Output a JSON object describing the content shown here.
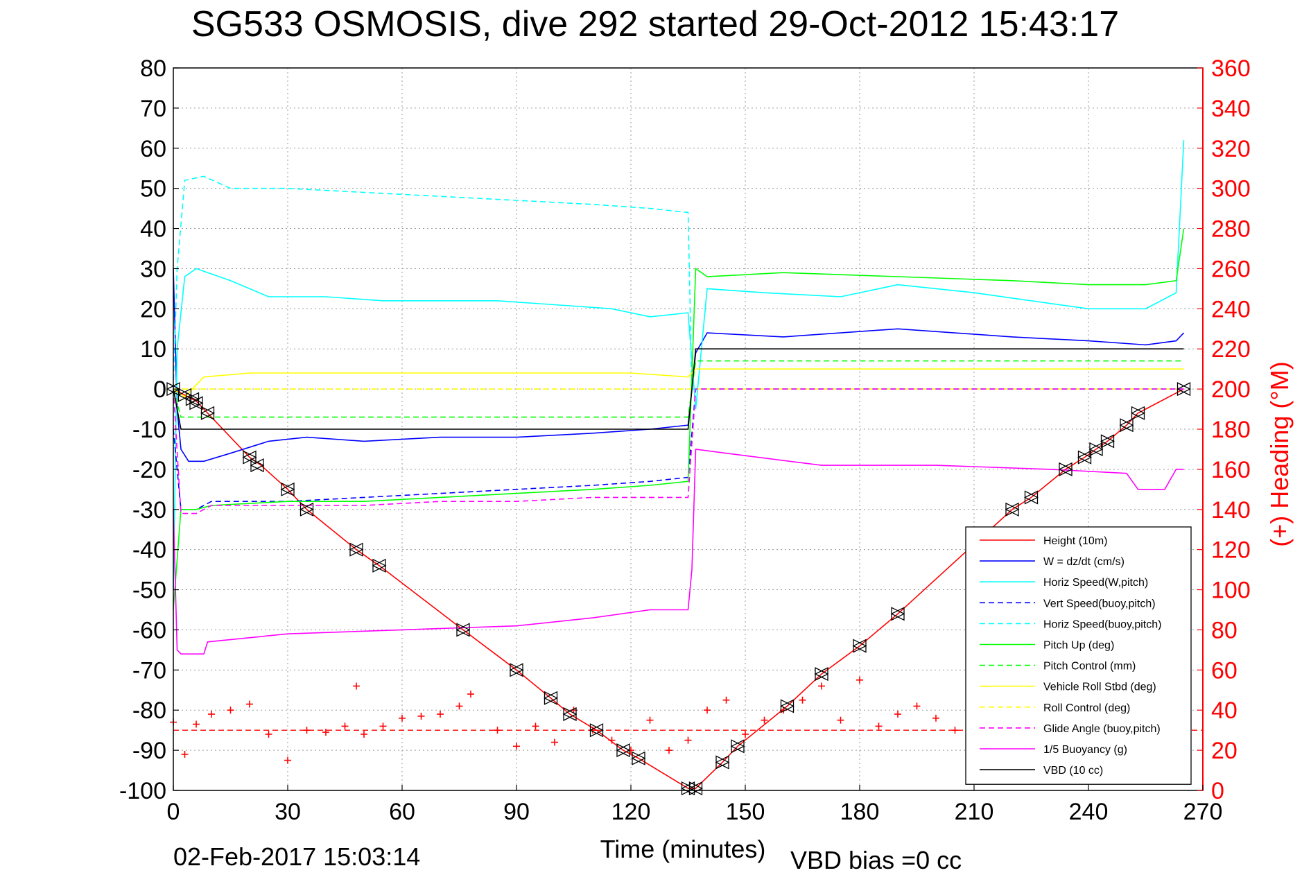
{
  "chart_data": {
    "type": "line",
    "title": "SG533 OSMOSIS, dive 292 started 29-Oct-2012 15:43:17",
    "xlabel": "Time (minutes)",
    "ylabel": "",
    "y2label": "(+) Heading (°M)",
    "xlim": [
      0,
      270
    ],
    "ylim": [
      -100,
      80
    ],
    "y2lim": [
      0,
      360
    ],
    "xticks": [
      "0",
      "30",
      "60",
      "90",
      "120",
      "150",
      "180",
      "210",
      "240",
      "270"
    ],
    "yticks": [
      "80",
      "70",
      "60",
      "50",
      "40",
      "30",
      "20",
      "10",
      "0",
      "-10",
      "-20",
      "-30",
      "-40",
      "-50",
      "-60",
      "-70",
      "-80",
      "-90",
      "-100"
    ],
    "y2ticks": [
      "360",
      "340",
      "320",
      "300",
      "280",
      "260",
      "240",
      "220",
      "200",
      "180",
      "160",
      "140",
      "120",
      "100",
      "80",
      "60",
      "40",
      "20",
      "0"
    ],
    "grid": true,
    "legend_position": "bottom-right",
    "footer_left": "02-Feb-2017 15:03:14",
    "footer_right": "VBD bias =0 cc",
    "colors": {
      "red": "#ff0000",
      "blue": "#0000ff",
      "cyan": "#00ffff",
      "green": "#00ff00",
      "yellow": "#ffff00",
      "magenta": "#ff00ff",
      "black": "#000000"
    },
    "series": [
      {
        "name": "Height (10m)",
        "color": "#ff0000",
        "dash": false,
        "x": [
          0,
          3,
          6,
          9,
          20,
          23,
          30,
          35,
          48,
          54,
          76,
          90,
          99,
          104,
          111,
          118,
          122,
          135,
          137,
          144,
          148,
          161,
          170,
          180,
          190,
          220,
          225,
          234,
          239,
          242,
          245,
          250,
          253,
          265
        ],
        "y": [
          0,
          -1.5,
          -3,
          -6,
          -17,
          -19,
          -25,
          -30,
          -40,
          -44,
          -60,
          -70,
          -77,
          -81,
          -85,
          -90,
          -92,
          -99.5,
          -99.5,
          -93,
          -89,
          -79,
          -71,
          -64,
          -56,
          -30,
          -27,
          -20,
          -17,
          -15,
          -13,
          -9,
          -6,
          0
        ]
      },
      {
        "name": "W = dz/dt (cm/s)",
        "color": "#0000ff",
        "dash": false,
        "x": [
          0,
          1,
          2,
          4,
          8,
          15,
          25,
          35,
          50,
          70,
          90,
          110,
          125,
          135,
          137,
          140,
          160,
          190,
          220,
          240,
          255,
          263,
          265
        ],
        "y": [
          30,
          -5,
          -15,
          -18,
          -18,
          -16,
          -13,
          -12,
          -13,
          -12,
          -12,
          -11,
          -10,
          -9,
          9,
          14,
          13,
          15,
          13,
          12,
          11,
          12,
          14
        ]
      },
      {
        "name": "Horiz Speed(W,pitch)",
        "color": "#00ffff",
        "dash": false,
        "x": [
          0,
          1,
          3,
          6,
          15,
          25,
          40,
          55,
          70,
          85,
          100,
          115,
          125,
          135,
          137,
          140,
          155,
          175,
          190,
          210,
          225,
          240,
          255,
          263,
          265
        ],
        "y": [
          -50,
          10,
          28,
          30,
          27,
          23,
          23,
          22,
          22,
          22,
          21,
          20,
          18,
          19,
          -5,
          25,
          24,
          23,
          26,
          24,
          22,
          20,
          20,
          24,
          62
        ]
      },
      {
        "name": "Vert Speed(buoy,pitch)",
        "color": "#0000ff",
        "dash": true,
        "x": [
          0,
          2,
          6,
          10,
          30,
          50,
          70,
          90,
          110,
          125,
          135,
          137,
          140,
          265
        ],
        "y": [
          -10,
          -30,
          -30,
          -28,
          -28,
          -27,
          -26,
          -25,
          -24,
          -23,
          -22,
          0,
          0,
          0
        ]
      },
      {
        "name": "Horiz Speed(buoy,pitch)",
        "color": "#00ffff",
        "dash": true,
        "x": [
          0,
          1,
          3,
          8,
          15,
          30,
          50,
          70,
          90,
          110,
          125,
          135,
          136,
          137,
          265
        ],
        "y": [
          0,
          30,
          52,
          53,
          50,
          50,
          49,
          48,
          47,
          46,
          45,
          44,
          0,
          0,
          0
        ]
      },
      {
        "name": "Pitch Up (deg)",
        "color": "#00ff00",
        "dash": false,
        "x": [
          0,
          2,
          6,
          10,
          30,
          50,
          70,
          90,
          110,
          125,
          135,
          137,
          140,
          160,
          190,
          220,
          240,
          255,
          263,
          265
        ],
        "y": [
          -55,
          -30,
          -30,
          -29,
          -28,
          -28,
          -27,
          -26,
          -25,
          -24,
          -23,
          30,
          28,
          29,
          28,
          27,
          26,
          26,
          27,
          40
        ]
      },
      {
        "name": "Pitch Control (mm)",
        "color": "#00ff00",
        "dash": true,
        "x": [
          0,
          2,
          135,
          137,
          265
        ],
        "y": [
          0,
          -7,
          -7,
          7,
          7
        ]
      },
      {
        "name": "Vehicle Roll Stbd (deg)",
        "color": "#ffff00",
        "dash": false,
        "x": [
          0,
          3,
          8,
          20,
          40,
          60,
          80,
          100,
          120,
          135,
          137,
          150,
          170,
          190,
          210,
          230,
          250,
          265
        ],
        "y": [
          0,
          -2,
          3,
          4,
          4,
          4,
          4,
          4,
          4,
          3,
          5,
          5,
          5,
          5,
          5,
          5,
          5,
          5
        ]
      },
      {
        "name": "Roll Control (deg)",
        "color": "#ffff00",
        "dash": true,
        "x": [
          0,
          265
        ],
        "y": [
          0,
          0
        ]
      },
      {
        "name": "Glide Angle (buoy,pitch)",
        "color": "#ff00ff",
        "dash": true,
        "x": [
          0,
          2,
          6,
          10,
          30,
          50,
          70,
          90,
          110,
          125,
          135,
          137,
          265
        ],
        "y": [
          0,
          -31,
          -31,
          -29,
          -29,
          -29,
          -28,
          -28,
          -27,
          -27,
          -27,
          0,
          0
        ]
      },
      {
        "name": "1/5 Buoyancy (g)",
        "color": "#ff00ff",
        "dash": false,
        "x": [
          0,
          1,
          2,
          8,
          9,
          30,
          60,
          90,
          110,
          125,
          135,
          136,
          137,
          145,
          170,
          200,
          230,
          250,
          253,
          260,
          263,
          265
        ],
        "y": [
          -30,
          -65,
          -66,
          -66,
          -63,
          -61,
          -60,
          -59,
          -57,
          -55,
          -55,
          -45,
          -15,
          -16,
          -19,
          -19,
          -20,
          -21,
          -25,
          -25,
          -20,
          -20
        ]
      },
      {
        "name": "VBD (10 cc)",
        "color": "#000000",
        "dash": false,
        "x": [
          0,
          2,
          135,
          137,
          265
        ],
        "y": [
          0,
          -10,
          -10,
          10,
          10
        ]
      }
    ],
    "heading": {
      "color": "#ff0000",
      "reference_heading": 30,
      "x": [
        0,
        3,
        6,
        10,
        15,
        20,
        25,
        30,
        35,
        40,
        45,
        48,
        50,
        55,
        60,
        65,
        70,
        75,
        78,
        85,
        90,
        95,
        100,
        105,
        110,
        115,
        120,
        125,
        130,
        135,
        140,
        145,
        150,
        155,
        160,
        165,
        170,
        175,
        180,
        185,
        190,
        195,
        200,
        205,
        210,
        220
      ],
      "y": [
        34,
        18,
        33,
        38,
        40,
        43,
        28,
        15,
        30,
        29,
        32,
        52,
        28,
        32,
        36,
        37,
        38,
        42,
        48,
        30,
        22,
        32,
        24,
        40,
        30,
        25,
        20,
        35,
        20,
        25,
        40,
        45,
        28,
        35,
        40,
        45,
        52,
        35,
        55,
        32,
        38,
        42,
        36,
        30,
        25,
        30
      ]
    },
    "markers": {
      "color": "#000000",
      "x": [
        0,
        3,
        5,
        6,
        9,
        20,
        22,
        30,
        35,
        48,
        54,
        76,
        90,
        99,
        104,
        111,
        118,
        122,
        135,
        137,
        144,
        148,
        161,
        170,
        180,
        190,
        220,
        225,
        234,
        239,
        242,
        245,
        250,
        253,
        265
      ],
      "y": [
        0,
        -1.5,
        -2.5,
        -3.5,
        -6,
        -17,
        -19,
        -25,
        -30,
        -40,
        -44,
        -60,
        -70,
        -77,
        -81,
        -85,
        -90,
        -92,
        -99.5,
        -99.5,
        -93,
        -89,
        -79,
        -71,
        -64,
        -56,
        -30,
        -27,
        -20,
        -17,
        -15,
        -13,
        -9,
        -6,
        0
      ]
    }
  }
}
